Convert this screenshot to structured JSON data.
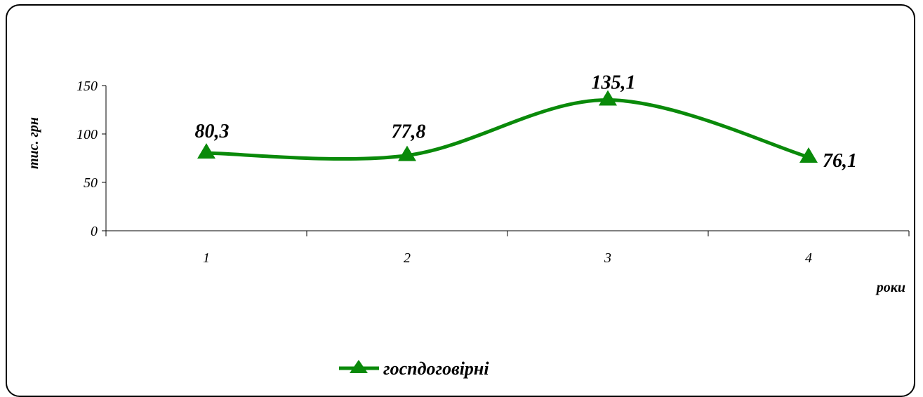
{
  "chart_data": {
    "type": "line",
    "categories": [
      "1",
      "2",
      "3",
      "4"
    ],
    "series": [
      {
        "name": "госпдоговірні",
        "values": [
          80.3,
          77.8,
          135.1,
          76.1
        ],
        "labels": [
          "80,3",
          "77,8",
          "135,1",
          "76,1"
        ]
      }
    ],
    "xlabel": "роки",
    "ylabel": "тис. грн",
    "ylim": [
      0,
      150
    ],
    "yticks": [
      0,
      50,
      100,
      150
    ],
    "grid": false,
    "legend_position": "bottom",
    "marker": "triangle",
    "smooth": true
  },
  "colors": {
    "series": "#0a8a0a",
    "axis": "#000000"
  }
}
